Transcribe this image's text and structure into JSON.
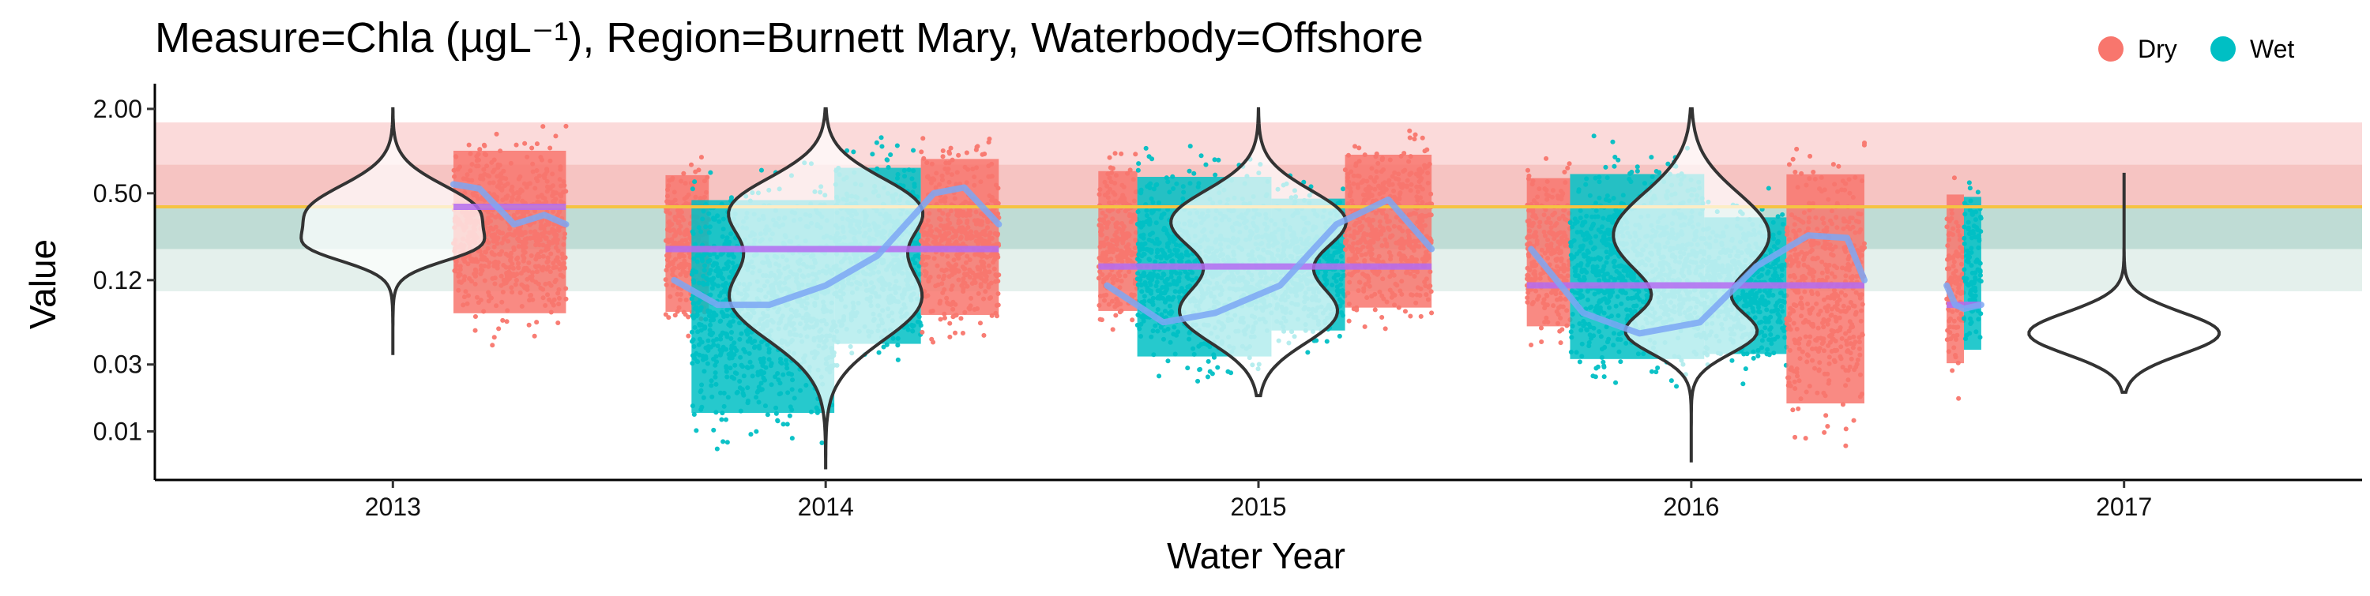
{
  "chart_data": {
    "type": "violin",
    "title": "Measure=Chla (µgL⁻¹), Region=Burnett Mary, Waterbody=Offshore",
    "xlabel": "Water Year",
    "ylabel": "Value",
    "y_scale": "log",
    "ylim": [
      0.0045,
      2.8
    ],
    "xlim": [
      2012.45,
      2017.55
    ],
    "y_ticks": [
      {
        "value": 2.0,
        "label": "2.00"
      },
      {
        "value": 0.5,
        "label": "0.50"
      },
      {
        "value": 0.12,
        "label": "0.12"
      },
      {
        "value": 0.03,
        "label": "0.03"
      },
      {
        "value": 0.01,
        "label": "0.01"
      }
    ],
    "x_ticks": [
      {
        "value": 2013,
        "label": "2013"
      },
      {
        "value": 2014,
        "label": "2014"
      },
      {
        "value": 2015,
        "label": "2015"
      },
      {
        "value": 2016,
        "label": "2016"
      },
      {
        "value": 2017,
        "label": "2017"
      }
    ],
    "legend": {
      "position": "top-right",
      "items": [
        {
          "label": "Dry",
          "color": "#F8766D"
        },
        {
          "label": "Wet",
          "color": "#00BFC4"
        }
      ]
    },
    "guideline": {
      "value": 0.4,
      "color": "#F5C342"
    },
    "bands": [
      {
        "ymin": 0.8,
        "ymax": 1.6,
        "color": "#FBDADA"
      },
      {
        "ymin": 0.4,
        "ymax": 0.8,
        "color": "#F6C4C2"
      },
      {
        "ymin": 0.2,
        "ymax": 0.4,
        "color": "#BFDCD5"
      },
      {
        "ymin": 0.1,
        "ymax": 0.2,
        "color": "#E4F0EC"
      }
    ],
    "violins": [
      {
        "year": 2013,
        "min": 0.035,
        "max": 2.0,
        "modes": [
          {
            "log": -0.45,
            "w": 0.2,
            "s": 0.2
          },
          {
            "log": -0.7,
            "w": 0.1,
            "s": 0.1
          }
        ]
      },
      {
        "year": 2014,
        "min": 0.0055,
        "max": 2.0,
        "modes": [
          {
            "log": -0.4,
            "w": 0.2,
            "s": 0.22
          },
          {
            "log": -1.05,
            "w": 0.22,
            "s": 0.3
          }
        ]
      },
      {
        "year": 2015,
        "min": 0.018,
        "max": 2.0,
        "modes": [
          {
            "log": -0.5,
            "w": 0.2,
            "s": 0.22
          },
          {
            "log": -1.15,
            "w": 0.18,
            "s": 0.22
          }
        ]
      },
      {
        "year": 2016,
        "min": 0.006,
        "max": 2.0,
        "modes": [
          {
            "log": -0.6,
            "w": 0.18,
            "s": 0.3
          },
          {
            "log": -1.3,
            "w": 0.14,
            "s": 0.15
          }
        ]
      },
      {
        "year": 2017,
        "min": 0.019,
        "max": 0.7,
        "modes": [
          {
            "log": -1.3,
            "w": 0.22,
            "s": 0.15
          }
        ]
      }
    ],
    "point_clouds": [
      {
        "x_start": 2013.14,
        "x_end": 2013.4,
        "season": "Dry",
        "ymin": 0.035,
        "ymax": 2.0
      },
      {
        "x_start": 2013.63,
        "x_end": 2013.73,
        "season": "Dry",
        "ymin": 0.04,
        "ymax": 1.2
      },
      {
        "x_start": 2013.69,
        "x_end": 2014.02,
        "season": "Wet",
        "ymin": 0.0055,
        "ymax": 1.1
      },
      {
        "x_start": 2014.02,
        "x_end": 2014.22,
        "season": "Wet",
        "ymin": 0.02,
        "ymax": 1.6
      },
      {
        "x_start": 2014.22,
        "x_end": 2014.4,
        "season": "Dry",
        "ymin": 0.035,
        "ymax": 1.7
      },
      {
        "x_start": 2014.63,
        "x_end": 2014.72,
        "season": "Dry",
        "ymin": 0.04,
        "ymax": 1.3
      },
      {
        "x_start": 2014.72,
        "x_end": 2015.03,
        "season": "Wet",
        "ymin": 0.016,
        "ymax": 1.4
      },
      {
        "x_start": 2015.03,
        "x_end": 2015.2,
        "season": "Wet",
        "ymin": 0.03,
        "ymax": 0.8
      },
      {
        "x_start": 2015.2,
        "x_end": 2015.4,
        "season": "Dry",
        "ymin": 0.04,
        "ymax": 1.8
      },
      {
        "x_start": 2015.62,
        "x_end": 2015.72,
        "season": "Dry",
        "ymin": 0.03,
        "ymax": 1.2
      },
      {
        "x_start": 2015.72,
        "x_end": 2016.03,
        "season": "Wet",
        "ymin": 0.015,
        "ymax": 1.5
      },
      {
        "x_start": 2016.03,
        "x_end": 2016.22,
        "season": "Wet",
        "ymin": 0.02,
        "ymax": 0.6
      },
      {
        "x_start": 2016.22,
        "x_end": 2016.4,
        "season": "Dry",
        "ymin": 0.006,
        "ymax": 1.8
      },
      {
        "x_start": 2016.59,
        "x_end": 2016.63,
        "season": "Dry",
        "ymin": 0.015,
        "ymax": 1.0
      },
      {
        "x_start": 2016.63,
        "x_end": 2016.67,
        "season": "Wet",
        "ymin": 0.02,
        "ymax": 0.9
      }
    ],
    "trend_smooth": [
      {
        "x": [
          2013.14,
          2013.2,
          2013.28,
          2013.35,
          2013.4
        ],
        "y": [
          0.58,
          0.54,
          0.3,
          0.35,
          0.3
        ]
      },
      {
        "x": [
          2013.65,
          2013.75,
          2013.87,
          2014.0,
          2014.12,
          2014.25,
          2014.32,
          2014.4
        ],
        "y": [
          0.12,
          0.08,
          0.08,
          0.11,
          0.18,
          0.5,
          0.55,
          0.3
        ]
      },
      {
        "x": [
          2014.65,
          2014.78,
          2014.9,
          2015.05,
          2015.18,
          2015.3,
          2015.4
        ],
        "y": [
          0.11,
          0.06,
          0.07,
          0.11,
          0.3,
          0.45,
          0.2
        ]
      },
      {
        "x": [
          2015.63,
          2015.75,
          2015.88,
          2016.02,
          2016.15,
          2016.27,
          2016.36,
          2016.4
        ],
        "y": [
          0.2,
          0.07,
          0.05,
          0.06,
          0.15,
          0.25,
          0.24,
          0.12
        ]
      },
      {
        "x": [
          2016.59,
          2016.61,
          2016.63,
          2016.67
        ],
        "y": [
          0.11,
          0.08,
          0.075,
          0.08
        ]
      }
    ],
    "trend_mean": [
      {
        "x_start": 2013.14,
        "x_end": 2013.4,
        "value": 0.4
      },
      {
        "x_start": 2013.63,
        "x_end": 2014.4,
        "value": 0.2
      },
      {
        "x_start": 2014.63,
        "x_end": 2015.4,
        "value": 0.15
      },
      {
        "x_start": 2015.62,
        "x_end": 2016.4,
        "value": 0.11
      },
      {
        "x_start": 2016.59,
        "x_end": 2016.67,
        "value": 0.08
      }
    ],
    "colors": {
      "dry": "#F8766D",
      "wet": "#00BFC4",
      "smooth_line": "#7DA7F5",
      "mean_line": "#B56CF2",
      "violin_outline": "#333333"
    }
  }
}
